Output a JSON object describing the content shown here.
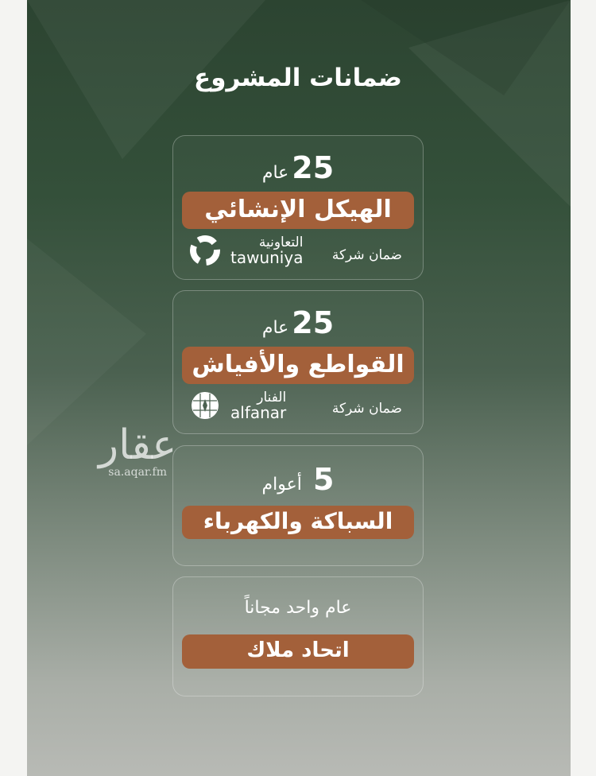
{
  "title": "ضمانات المشروع",
  "cards": [
    {
      "years": "25",
      "unit": "عام",
      "label": "الهيكل الإنشائي",
      "guarantee": "ضمان شركة",
      "company_ar": "التعاونية",
      "company_en": "tawuniya",
      "logo_icon": "tawuniya-logo"
    },
    {
      "years": "25",
      "unit": "عام",
      "label": "القواطع والأفياش",
      "guarantee": "ضمان شركة",
      "company_ar": "الفنار",
      "company_en": "alfanar",
      "logo_icon": "alfanar-logo"
    },
    {
      "years": "5",
      "unit": "أعوام",
      "label": "السباكة والكهرباء"
    },
    {
      "subtitle": "عام واحد مجاناً",
      "label": "اتحاد ملاك"
    }
  ],
  "watermark": {
    "ar": "عقار",
    "en": "sa.aqar.fm"
  },
  "colors": {
    "accent": "#a3603a",
    "background_top": "#2c4431",
    "background_bottom": "#b8bab5"
  }
}
